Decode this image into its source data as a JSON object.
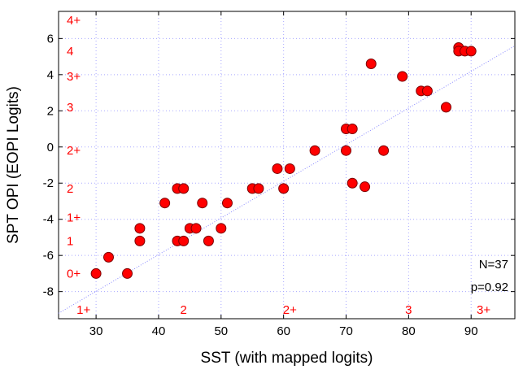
{
  "chart_data": {
    "type": "scatter",
    "xlabel": "SST (with mapped logits)",
    "ylabel": "SPT OPI (EOPI Logits)",
    "xlim": [
      24,
      97
    ],
    "ylim": [
      -9.5,
      7.5
    ],
    "xticks": [
      "30",
      "40",
      "50",
      "60",
      "70",
      "80",
      "90"
    ],
    "yticks": [
      "-8",
      "-6",
      "-4",
      "-2",
      "0",
      "2",
      "4",
      "6"
    ],
    "grid": true,
    "marker_color": "#ff0000",
    "marker_edge_color": "#7a0000",
    "trend_color": "#8888ff",
    "points": [
      {
        "x": 30,
        "y": -7.0
      },
      {
        "x": 32,
        "y": -6.1
      },
      {
        "x": 35,
        "y": -7.0
      },
      {
        "x": 37,
        "y": -4.5
      },
      {
        "x": 37,
        "y": -5.2
      },
      {
        "x": 41,
        "y": -3.1
      },
      {
        "x": 43,
        "y": -2.3
      },
      {
        "x": 44,
        "y": -2.3
      },
      {
        "x": 43,
        "y": -5.2
      },
      {
        "x": 44,
        "y": -5.2
      },
      {
        "x": 45,
        "y": -4.5
      },
      {
        "x": 46,
        "y": -4.5
      },
      {
        "x": 47,
        "y": -3.1
      },
      {
        "x": 48,
        "y": -5.2
      },
      {
        "x": 50,
        "y": -4.5
      },
      {
        "x": 51,
        "y": -3.1
      },
      {
        "x": 55,
        "y": -2.3
      },
      {
        "x": 56,
        "y": -2.3
      },
      {
        "x": 59,
        "y": -1.2
      },
      {
        "x": 60,
        "y": -2.3
      },
      {
        "x": 61,
        "y": -1.2
      },
      {
        "x": 65,
        "y": -0.2
      },
      {
        "x": 70,
        "y": -0.2
      },
      {
        "x": 70,
        "y": 1.0
      },
      {
        "x": 71,
        "y": 1.0
      },
      {
        "x": 71,
        "y": -2.0
      },
      {
        "x": 73,
        "y": -2.2
      },
      {
        "x": 74,
        "y": 4.6
      },
      {
        "x": 76,
        "y": -0.2
      },
      {
        "x": 79,
        "y": 3.9
      },
      {
        "x": 82,
        "y": 3.1
      },
      {
        "x": 83,
        "y": 3.1
      },
      {
        "x": 86,
        "y": 2.2
      },
      {
        "x": 88,
        "y": 5.5
      },
      {
        "x": 88,
        "y": 5.3
      },
      {
        "x": 89,
        "y": 5.3
      },
      {
        "x": 90,
        "y": 5.3
      }
    ],
    "trendline": {
      "x": [
        24,
        97
      ],
      "y": [
        -9.2,
        5.6
      ]
    },
    "y_grade_labels": [
      {
        "text": "4+",
        "y": 7.0
      },
      {
        "text": "4",
        "y": 5.3
      },
      {
        "text": "3+",
        "y": 3.9
      },
      {
        "text": "3",
        "y": 2.2
      },
      {
        "text": "2+",
        "y": -0.2
      },
      {
        "text": "2",
        "y": -2.3
      },
      {
        "text": "1+",
        "y": -3.9
      },
      {
        "text": "1",
        "y": -5.2
      },
      {
        "text": "0+",
        "y": -7.0
      }
    ],
    "x_grade_labels": [
      {
        "text": "1+",
        "x": 28
      },
      {
        "text": "2",
        "x": 44
      },
      {
        "text": "2+",
        "x": 61
      },
      {
        "text": "3",
        "x": 80
      },
      {
        "text": "3+",
        "x": 92
      }
    ],
    "annotations": {
      "n": "N=37",
      "p": "p=0.92"
    }
  }
}
